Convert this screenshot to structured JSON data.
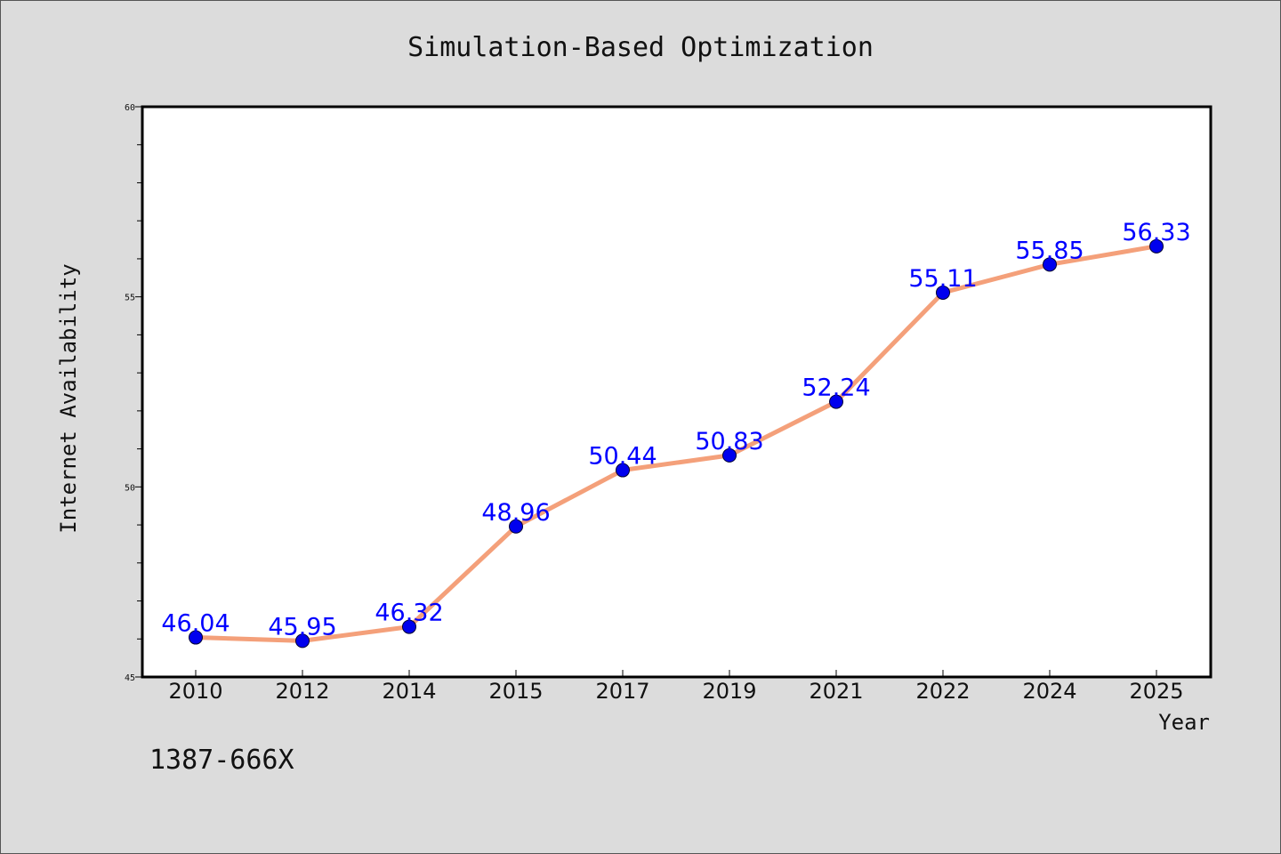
{
  "chart_data": {
    "type": "line",
    "title": "Simulation-Based Optimization",
    "xlabel": "Year",
    "ylabel": "Internet Availability",
    "categories": [
      "2010",
      "2012",
      "2014",
      "2015",
      "2017",
      "2019",
      "2021",
      "2022",
      "2024",
      "2025"
    ],
    "series": [
      {
        "values": [
          46.04,
          45.95,
          46.32,
          48.96,
          50.44,
          50.83,
          52.24,
          55.11,
          55.85,
          56.33
        ],
        "line_color": "#f4a07a",
        "marker_color": "#0000ee"
      }
    ],
    "data_labels": [
      "46.04",
      "45.95",
      "46.32",
      "48.96",
      "50.44",
      "50.83",
      "52.24",
      "55.11",
      "55.85",
      "56.33"
    ],
    "data_label_color": "#0000ff",
    "ylim": [
      45,
      60
    ],
    "yticks": [
      "45",
      "50",
      "55",
      "60"
    ],
    "grid": false,
    "legend": "none"
  },
  "footer": {
    "code": "1387-666X"
  }
}
